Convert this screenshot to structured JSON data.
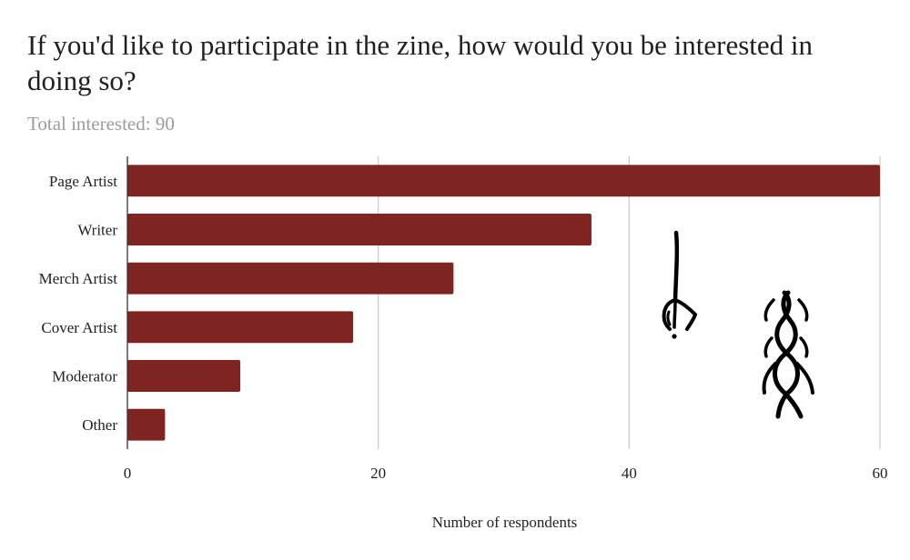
{
  "chart_data": {
    "type": "bar",
    "orientation": "horizontal",
    "title": "If you'd like to participate in the zine, how would you be interested in doing so?",
    "subtitle": "Total interested: 90",
    "categories": [
      "Page Artist",
      "Writer",
      "Merch Artist",
      "Cover Artist",
      "Moderator",
      "Other"
    ],
    "values": [
      60,
      37,
      26,
      18,
      9,
      3
    ],
    "xlabel": "Number of respondents",
    "ylabel": "",
    "xlim": [
      0,
      60
    ],
    "xticks": [
      0,
      20,
      40,
      60
    ],
    "grid": true,
    "bar_color": "#7f2420",
    "legend": "none"
  }
}
